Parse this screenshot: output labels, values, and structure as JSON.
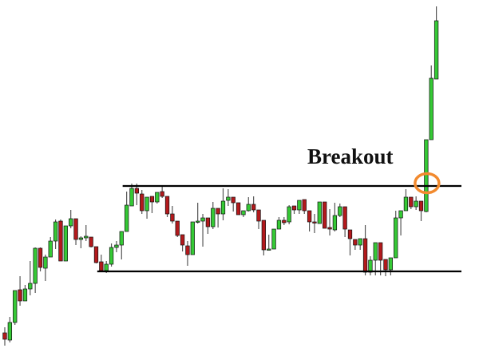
{
  "chart_data": {
    "type": "candlestick",
    "title": "",
    "xlabel": "",
    "ylabel": "",
    "axes_visible": false,
    "grid": false,
    "ylim": [
      0,
      446
    ],
    "colors": {
      "up": "#35c935",
      "down": "#b3191c",
      "wick": "#555555",
      "outline": "#111111",
      "level_line": "#000000",
      "highlight": "#f28a2e"
    },
    "ohlc_format": [
      "open",
      "high",
      "low",
      "close"
    ],
    "candles": [
      [
        29,
        36,
        13,
        21
      ],
      [
        20,
        49,
        17,
        42
      ],
      [
        42,
        82,
        39,
        82
      ],
      [
        83,
        100,
        63,
        69
      ],
      [
        69,
        89,
        69,
        84
      ],
      [
        84,
        119,
        76,
        91
      ],
      [
        91,
        136,
        79,
        135
      ],
      [
        135,
        136,
        106,
        111
      ],
      [
        110,
        127,
        94,
        124
      ],
      [
        124,
        149,
        124,
        144
      ],
      [
        144,
        171,
        134,
        168
      ],
      [
        169,
        171,
        119,
        119
      ],
      [
        119,
        163,
        119,
        163
      ],
      [
        163,
        183,
        160,
        172
      ],
      [
        172,
        172,
        139,
        146
      ],
      [
        146,
        150,
        135,
        148
      ],
      [
        148,
        164,
        144,
        150
      ],
      [
        149,
        149,
        136,
        137
      ],
      [
        137,
        137,
        116,
        117
      ],
      [
        118,
        127,
        106,
        107
      ],
      [
        107,
        119,
        104,
        115
      ],
      [
        115,
        141,
        112,
        136
      ],
      [
        136,
        144,
        130,
        139
      ],
      [
        139,
        156,
        121,
        156
      ],
      [
        156,
        206,
        156,
        189
      ],
      [
        188,
        216,
        188,
        210
      ],
      [
        210,
        216,
        189,
        204
      ],
      [
        203,
        208,
        178,
        182
      ],
      [
        182,
        199,
        172,
        199
      ],
      [
        200,
        200,
        179,
        193
      ],
      [
        193,
        205,
        191,
        205
      ],
      [
        206,
        212,
        198,
        200
      ],
      [
        200,
        200,
        174,
        178
      ],
      [
        178,
        188,
        166,
        169
      ],
      [
        169,
        169,
        149,
        151
      ],
      [
        152,
        152,
        131,
        139
      ],
      [
        138,
        144,
        113,
        127
      ],
      [
        127,
        168,
        127,
        168
      ],
      [
        168,
        192,
        166,
        169
      ],
      [
        169,
        178,
        137,
        173
      ],
      [
        173,
        173,
        153,
        162
      ],
      [
        162,
        193,
        159,
        185
      ],
      [
        185,
        185,
        161,
        178
      ],
      [
        178,
        210,
        170,
        194
      ],
      [
        195,
        209,
        188,
        199
      ],
      [
        199,
        199,
        181,
        192
      ],
      [
        192,
        192,
        177,
        177
      ],
      [
        177,
        182,
        174,
        182
      ],
      [
        182,
        199,
        181,
        190
      ],
      [
        190,
        200,
        180,
        183
      ],
      [
        183,
        183,
        159,
        169
      ],
      [
        170,
        170,
        126,
        133
      ],
      [
        133,
        152,
        133,
        134
      ],
      [
        134,
        159,
        134,
        159
      ],
      [
        159,
        174,
        159,
        170
      ],
      [
        170,
        174,
        164,
        167
      ],
      [
        168,
        189,
        165,
        187
      ],
      [
        188,
        188,
        178,
        183
      ],
      [
        183,
        195,
        178,
        195
      ],
      [
        196,
        196,
        178,
        182
      ],
      [
        182,
        182,
        156,
        168
      ],
      [
        168,
        178,
        154,
        167
      ],
      [
        166,
        193,
        166,
        193
      ],
      [
        193,
        193,
        160,
        160
      ],
      [
        161,
        184,
        151,
        159
      ],
      [
        158,
        192,
        156,
        176
      ],
      [
        176,
        191,
        174,
        187
      ],
      [
        187,
        187,
        149,
        159
      ],
      [
        158,
        158,
        126,
        147
      ],
      [
        146,
        146,
        133,
        139
      ],
      [
        139,
        147,
        133,
        147
      ],
      [
        147,
        164,
        101,
        105
      ],
      [
        105,
        125,
        101,
        120
      ],
      [
        120,
        142,
        101,
        142
      ],
      [
        142,
        142,
        101,
        120
      ],
      [
        121,
        121,
        100,
        108
      ],
      [
        108,
        123,
        101,
        123
      ],
      [
        123,
        182,
        123,
        173
      ],
      [
        173,
        182,
        151,
        182
      ],
      [
        182,
        209,
        182,
        199
      ],
      [
        199,
        199,
        184,
        187
      ],
      [
        187,
        200,
        183,
        194
      ],
      [
        194,
        194,
        169,
        182
      ],
      [
        181,
        271,
        180,
        271
      ],
      [
        271,
        364,
        271,
        348
      ],
      [
        347,
        438,
        347,
        420
      ]
    ],
    "levels": [
      {
        "kind": "resistance",
        "value": 213,
        "from_candle": 24
      },
      {
        "kind": "support",
        "value": 106,
        "from_candle": 19
      }
    ],
    "annotations": [
      {
        "text": "Breakout",
        "candle": 83,
        "value": 216,
        "marker": "circle"
      }
    ]
  }
}
